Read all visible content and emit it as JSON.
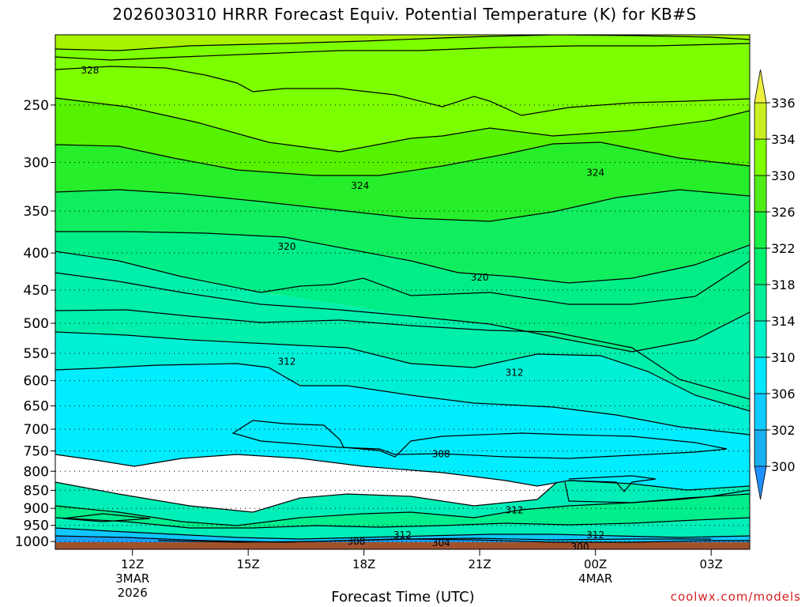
{
  "title": "2026030310 HRRR Forecast Equiv. Potential Temperature (K) for KB#S",
  "footer_credit": "coolwx.com/models",
  "colors": {
    "terrain": "#a0522d",
    "contour_line": "#000000",
    "credit": "#d42020"
  },
  "chart_data": {
    "type": "heatmap",
    "title": "2026030310 HRRR Forecast Equiv. Potential Temperature (K) for KB#S",
    "xlabel": "Forecast Time (UTC)",
    "ylabel": "",
    "x_ticks": [
      {
        "label": "12Z",
        "sub1": "3MAR",
        "sub2": "2026",
        "hour": 12
      },
      {
        "label": "15Z",
        "sub1": "",
        "sub2": "",
        "hour": 15
      },
      {
        "label": "18Z",
        "sub1": "",
        "sub2": "",
        "hour": 18
      },
      {
        "label": "21Z",
        "sub1": "",
        "sub2": "",
        "hour": 21
      },
      {
        "label": "00Z",
        "sub1": "4MAR",
        "sub2": "",
        "hour": 24
      },
      {
        "label": "03Z",
        "sub1": "",
        "sub2": "",
        "hour": 27
      }
    ],
    "xlim_hours": [
      10,
      28
    ],
    "y_ticks": [
      250,
      300,
      350,
      400,
      450,
      500,
      550,
      600,
      650,
      700,
      750,
      800,
      850,
      900,
      950,
      1000
    ],
    "ylim_hpa": [
      1025,
      200
    ],
    "y_scale": "log",
    "grid": "dotted horizontal at pressure levels",
    "colorbar": {
      "levels": [
        300,
        302,
        306,
        310,
        314,
        318,
        322,
        326,
        330,
        334,
        336
      ],
      "labels": [
        "300",
        "302",
        "306",
        "310",
        "314",
        "318",
        "322",
        "326",
        "330",
        "334",
        "336"
      ],
      "colors": [
        "#1e90ff",
        "#1ab0f0",
        "#10ccff",
        "#00e8ff",
        "#00f0c8",
        "#00ee9a",
        "#00f070",
        "#18f048",
        "#50ee18",
        "#80ff00",
        "#c8f020",
        "#eef040"
      ],
      "extend": "both"
    },
    "contour_labels": [
      {
        "value": "328",
        "hour": 10.9,
        "p": 224
      },
      {
        "value": "324",
        "hour": 17.9,
        "p": 323
      },
      {
        "value": "324",
        "hour": 24.0,
        "p": 310
      },
      {
        "value": "320",
        "hour": 16.0,
        "p": 392
      },
      {
        "value": "320",
        "hour": 21.0,
        "p": 432
      },
      {
        "value": "312",
        "hour": 16.0,
        "p": 565
      },
      {
        "value": "312",
        "hour": 21.9,
        "p": 585
      },
      {
        "value": "308",
        "hour": 20.0,
        "p": 757
      },
      {
        "value": "312",
        "hour": 21.9,
        "p": 905
      },
      {
        "value": "312",
        "hour": 19.0,
        "p": 980
      },
      {
        "value": "312",
        "hour": 24.0,
        "p": 980
      },
      {
        "value": "308",
        "hour": 17.8,
        "p": 1000
      },
      {
        "value": "304",
        "hour": 20.0,
        "p": 1005
      },
      {
        "value": "300",
        "hour": 23.6,
        "p": 1017
      }
    ],
    "field_summary": [
      {
        "range_hpa": [
          200,
          250
        ],
        "theta_e_K": 332
      },
      {
        "range_hpa": [
          250,
          340
        ],
        "theta_e_K": 328
      },
      {
        "range_hpa": [
          340,
          420
        ],
        "theta_e_K": 324
      },
      {
        "range_hpa": [
          420,
          520
        ],
        "theta_e_K": 320
      },
      {
        "range_hpa": [
          520,
          600
        ],
        "theta_e_K": 316
      },
      {
        "range_hpa": [
          600,
          850
        ],
        "theta_e_K": 310
      },
      {
        "range_hpa": [
          850,
          990
        ],
        "theta_e_K": 314
      },
      {
        "range_hpa": [
          990,
          1012
        ],
        "theta_e_K": 306
      }
    ]
  }
}
